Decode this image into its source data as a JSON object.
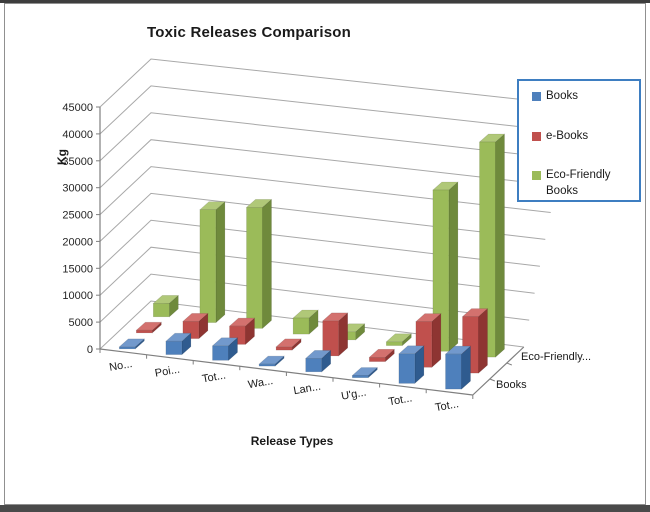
{
  "window": {
    "top_edge_color": "#3d3d3d",
    "bottom_edge_color": "#4a4a4a",
    "frame_border_color": "#909090"
  },
  "chart_data": {
    "type": "bar",
    "projection": "3d",
    "title": "Toxic Releases Comparison",
    "xlabel": "Release Types",
    "ylabel": "Kg",
    "categories": [
      "No...",
      "Poi...",
      "Tot...",
      "Wa...",
      "Lan...",
      "U'g...",
      "Tot...",
      "Tot..."
    ],
    "series": [
      {
        "name": "Books",
        "color": "#4e80bc",
        "color_top": "#7299cc",
        "color_side": "#2f5b8f",
        "values": [
          200,
          2500,
          2700,
          300,
          2500,
          400,
          5500,
          6500
        ]
      },
      {
        "name": "e-Books",
        "color": "#c0504d",
        "color_top": "#d3716e",
        "color_side": "#8e3532",
        "values": [
          500,
          3200,
          3400,
          600,
          6500,
          800,
          8500,
          10500
        ]
      },
      {
        "name": "Eco-Friendly Books",
        "color": "#9bbb59",
        "color_top": "#b0c878",
        "color_side": "#6f8a3c",
        "values": [
          2500,
          21000,
          22500,
          3000,
          1500,
          700,
          30000,
          40000
        ]
      }
    ],
    "ylim": [
      0,
      45000
    ],
    "ytick_step": 5000,
    "grid": true,
    "gridline_color": "#a8a8a8",
    "axis_color": "#7f7f7f",
    "tick_label_color": "#262626",
    "legend_position": "right",
    "depth_axis_labels": [
      "Books",
      "Eco-Friendly..."
    ]
  },
  "legend": {
    "border_color": "#3e7ec1",
    "items": [
      {
        "label": "Books",
        "color": "#4e80bc"
      },
      {
        "label": "e-Books",
        "color": "#c0504d"
      },
      {
        "label": "Eco-Friendly Books",
        "color": "#9bbb59"
      }
    ]
  }
}
